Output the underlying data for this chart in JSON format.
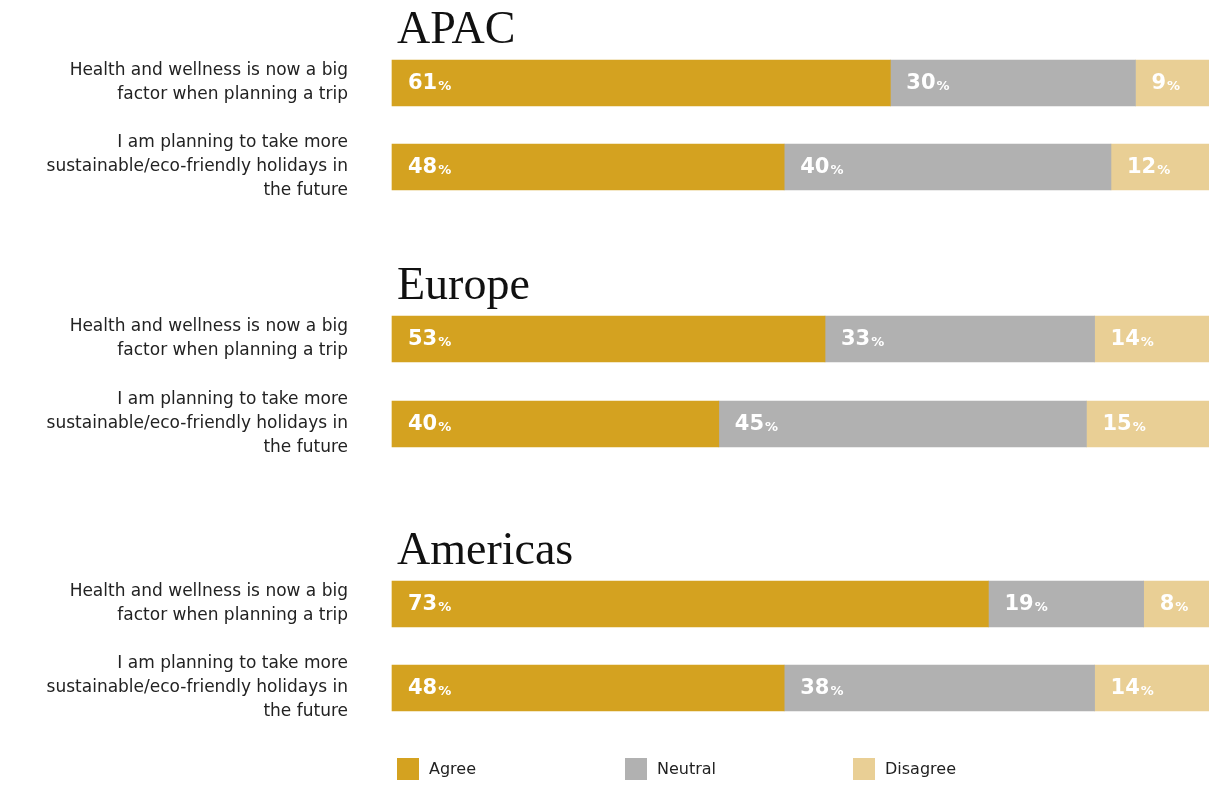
{
  "chart_data": [
    {
      "type": "bar",
      "title": "APAC",
      "orientation": "horizontal",
      "stacked": true,
      "categories": [
        "Health and wellness is now a big factor when planning a trip",
        "I am planning to take more sustainable/eco-friendly holidays in the future"
      ],
      "xlim": [
        0,
        100
      ],
      "tick_labels": "y",
      "grid": false,
      "series": [
        {
          "color": "#d4a220",
          "values": [
            61,
            48
          ],
          "value_labels": [
            "61%",
            "48%"
          ]
        },
        {
          "color": "#b1b1b1",
          "values": [
            30,
            40
          ],
          "value_labels": [
            "30%",
            "40%"
          ]
        },
        {
          "color": "#e9cf95",
          "values": [
            9,
            12
          ],
          "value_labels": [
            "9%",
            "12%"
          ]
        }
      ]
    },
    {
      "type": "bar",
      "title": "Europe",
      "orientation": "horizontal",
      "stacked": true,
      "categories": [
        "Health and wellness is now a big factor when planning a trip",
        "I am planning to take more sustainable/eco-friendly holidays in the future"
      ],
      "xlim": [
        0,
        100
      ],
      "tick_labels": "y",
      "grid": false,
      "series": [
        {
          "color": "#d4a220",
          "values": [
            53,
            40
          ],
          "value_labels": [
            "53%",
            "40%"
          ]
        },
        {
          "color": "#b1b1b1",
          "values": [
            33,
            45
          ],
          "value_labels": [
            "33%",
            "45%"
          ]
        },
        {
          "color": "#e9cf95",
          "values": [
            14,
            15
          ],
          "value_labels": [
            "14%",
            "15%"
          ]
        }
      ]
    },
    {
      "type": "bar",
      "title": "Americas",
      "orientation": "horizontal",
      "stacked": true,
      "categories": [
        "Health and wellness is now a big factor when planning a trip",
        "I am planning to take more sustainable/eco-friendly holidays in the future"
      ],
      "xlim": [
        0,
        100
      ],
      "tick_labels": "y",
      "grid": false,
      "legend": "bottom",
      "series": [
        {
          "name": "Agree",
          "color": "#d4a220",
          "values": [
            73,
            48
          ],
          "value_labels": [
            "73%",
            "48%"
          ]
        },
        {
          "name": "Neutral",
          "color": "#b1b1b1",
          "values": [
            19,
            38
          ],
          "value_labels": [
            "19%",
            "38%"
          ]
        },
        {
          "name": "Disagree",
          "color": "#e9cf95",
          "values": [
            8,
            14
          ],
          "value_labels": [
            "8%",
            "14%"
          ]
        }
      ]
    }
  ]
}
